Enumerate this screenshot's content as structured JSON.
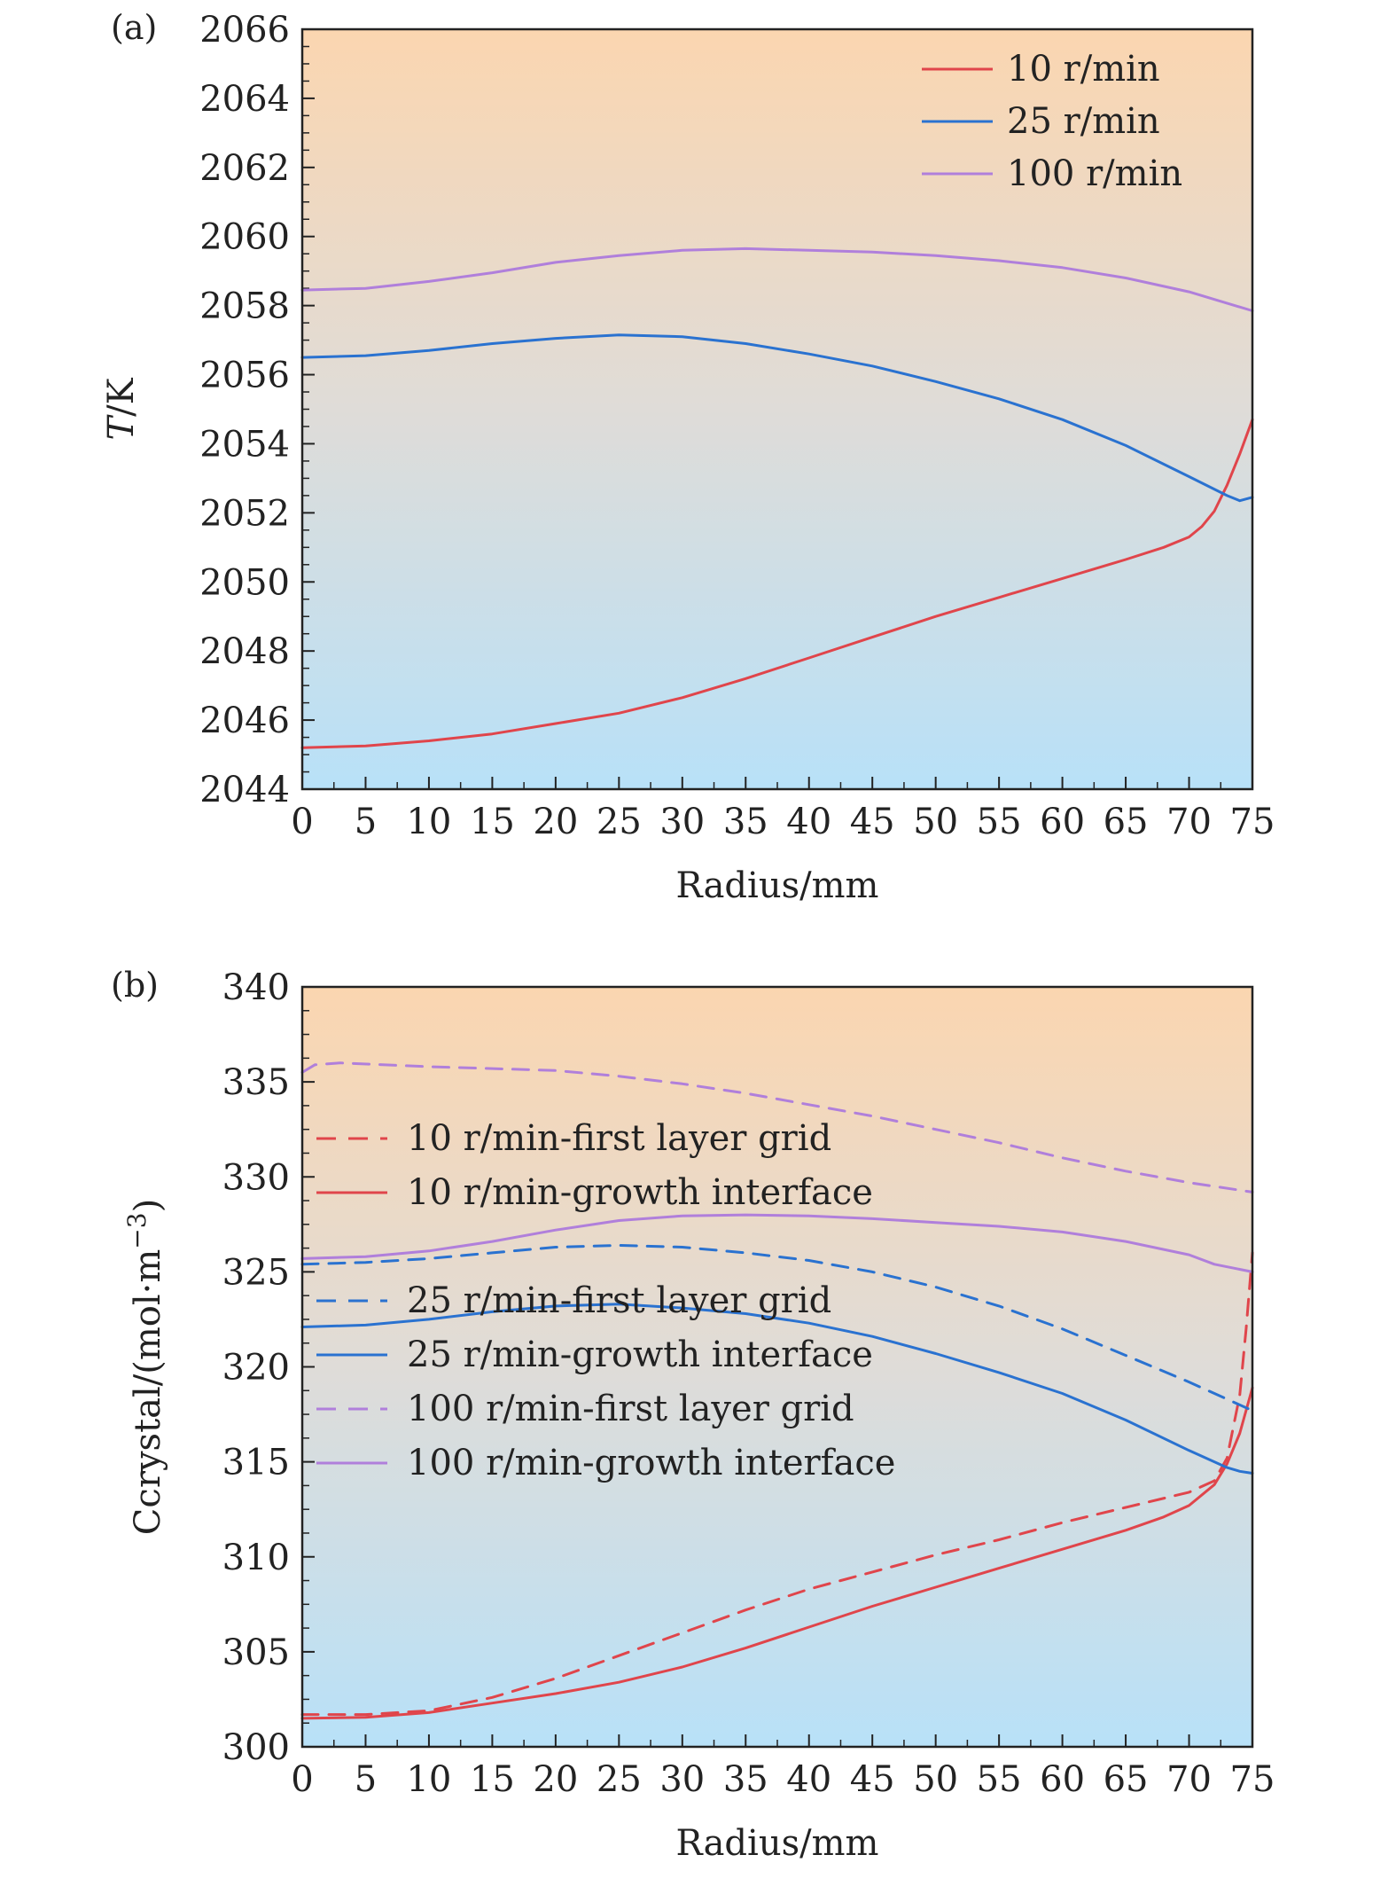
{
  "chart_data": [
    {
      "type": "line",
      "panel_label": "(a)",
      "xlabel": "Radius/mm",
      "ylabel": "T/K",
      "xlim": [
        0,
        75
      ],
      "ylim": [
        2044,
        2066
      ],
      "xticks": [
        "0",
        "5",
        "10",
        "15",
        "20",
        "25",
        "30",
        "35",
        "40",
        "45",
        "50",
        "55",
        "60",
        "65",
        "70",
        "75"
      ],
      "yticks": [
        "2044",
        "2046",
        "2048",
        "2050",
        "2052",
        "2054",
        "2056",
        "2058",
        "2060",
        "2062",
        "2064",
        "2066"
      ],
      "legend_position": "top-right",
      "series": [
        {
          "name": "10 r/min",
          "color": "#e0454b",
          "dash": "solid",
          "x": [
            0,
            5,
            10,
            15,
            20,
            25,
            30,
            35,
            40,
            45,
            50,
            55,
            60,
            65,
            68,
            70,
            71,
            72,
            73,
            74,
            75
          ],
          "y": [
            2045.2,
            2045.25,
            2045.4,
            2045.6,
            2045.9,
            2046.2,
            2046.65,
            2047.2,
            2047.8,
            2048.4,
            2049.0,
            2049.55,
            2050.1,
            2050.65,
            2051.0,
            2051.3,
            2051.6,
            2052.05,
            2052.8,
            2053.7,
            2054.7
          ]
        },
        {
          "name": "25 r/min",
          "color": "#2a72d0",
          "dash": "solid",
          "x": [
            0,
            5,
            10,
            15,
            20,
            25,
            30,
            35,
            40,
            45,
            50,
            55,
            60,
            65,
            70,
            73,
            74,
            75
          ],
          "y": [
            2056.5,
            2056.55,
            2056.7,
            2056.9,
            2057.05,
            2057.15,
            2057.1,
            2056.9,
            2056.6,
            2056.25,
            2055.8,
            2055.3,
            2054.7,
            2053.95,
            2053.05,
            2052.5,
            2052.35,
            2052.45
          ]
        },
        {
          "name": "100 r/min",
          "color": "#b07fdb",
          "dash": "solid",
          "x": [
            0,
            5,
            10,
            15,
            20,
            25,
            30,
            35,
            40,
            45,
            50,
            55,
            60,
            65,
            70,
            75
          ],
          "y": [
            2058.45,
            2058.5,
            2058.7,
            2058.95,
            2059.25,
            2059.45,
            2059.6,
            2059.65,
            2059.6,
            2059.55,
            2059.45,
            2059.3,
            2059.1,
            2058.8,
            2058.4,
            2057.85
          ]
        }
      ]
    },
    {
      "type": "line",
      "panel_label": "(b)",
      "xlabel": "Radius/mm",
      "ylabel_main": "Ccrystal/(mol·m",
      "ylabel_sup": "−3",
      "ylabel_close": ")",
      "xlim": [
        0,
        75
      ],
      "ylim": [
        300,
        340
      ],
      "xticks": [
        "0",
        "5",
        "10",
        "15",
        "20",
        "25",
        "30",
        "35",
        "40",
        "45",
        "50",
        "55",
        "60",
        "65",
        "70",
        "75"
      ],
      "yticks": [
        "300",
        "305",
        "310",
        "315",
        "320",
        "325",
        "330",
        "335",
        "340"
      ],
      "legend_position": "left",
      "series": [
        {
          "name": "10 r/min-first layer grid",
          "color": "#e0454b",
          "dash": "dashed",
          "x": [
            0,
            5,
            10,
            15,
            20,
            25,
            30,
            35,
            40,
            45,
            50,
            55,
            60,
            65,
            70,
            72,
            73,
            74,
            74.5,
            75
          ],
          "y": [
            301.7,
            301.7,
            301.9,
            302.6,
            303.6,
            304.8,
            306.0,
            307.2,
            308.3,
            309.2,
            310.1,
            310.9,
            311.8,
            312.6,
            313.4,
            314.0,
            315.2,
            318.5,
            322.0,
            326.0
          ]
        },
        {
          "name": "10 r/min-growth interface",
          "color": "#e0454b",
          "dash": "solid",
          "x": [
            0,
            5,
            10,
            15,
            20,
            25,
            30,
            35,
            40,
            45,
            50,
            55,
            60,
            65,
            68,
            70,
            72,
            73,
            74,
            75
          ],
          "y": [
            301.5,
            301.55,
            301.8,
            302.3,
            302.8,
            303.4,
            304.2,
            305.2,
            306.3,
            307.4,
            308.4,
            309.4,
            310.4,
            311.4,
            312.1,
            312.7,
            313.8,
            314.9,
            316.5,
            318.9
          ]
        },
        {
          "name": "25 r/min-first layer grid",
          "color": "#2a72d0",
          "dash": "dashed",
          "x": [
            0,
            5,
            10,
            15,
            20,
            25,
            30,
            35,
            40,
            45,
            50,
            55,
            60,
            65,
            70,
            75
          ],
          "y": [
            325.4,
            325.5,
            325.7,
            326.0,
            326.3,
            326.4,
            326.3,
            326.0,
            325.6,
            325.0,
            324.2,
            323.2,
            322.0,
            320.6,
            319.2,
            317.7
          ]
        },
        {
          "name": "25 r/min-growth interface",
          "color": "#2a72d0",
          "dash": "solid",
          "x": [
            0,
            5,
            10,
            15,
            20,
            25,
            30,
            35,
            40,
            45,
            50,
            55,
            60,
            65,
            70,
            73,
            74,
            75
          ],
          "y": [
            322.1,
            322.2,
            322.5,
            322.9,
            323.2,
            323.3,
            323.1,
            322.8,
            322.3,
            321.6,
            320.7,
            319.7,
            318.6,
            317.2,
            315.6,
            314.7,
            314.5,
            314.4
          ]
        },
        {
          "name": "100 r/min-first layer grid",
          "color": "#b07fdb",
          "dash": "dashed",
          "x": [
            0,
            1,
            3,
            10,
            15,
            20,
            25,
            30,
            35,
            40,
            45,
            50,
            55,
            60,
            65,
            70,
            75
          ],
          "y": [
            335.5,
            335.9,
            336.0,
            335.8,
            335.7,
            335.6,
            335.3,
            334.9,
            334.4,
            333.8,
            333.2,
            332.5,
            331.8,
            331.0,
            330.3,
            329.7,
            329.2
          ]
        },
        {
          "name": "100 r/min-growth interface",
          "color": "#b07fdb",
          "dash": "solid",
          "x": [
            0,
            5,
            10,
            15,
            20,
            25,
            30,
            35,
            40,
            45,
            50,
            55,
            60,
            65,
            70,
            72,
            75
          ],
          "y": [
            325.7,
            325.8,
            326.1,
            326.6,
            327.2,
            327.7,
            327.95,
            328.0,
            327.95,
            327.8,
            327.6,
            327.4,
            327.1,
            326.6,
            325.9,
            325.4,
            325.0
          ]
        }
      ]
    }
  ]
}
